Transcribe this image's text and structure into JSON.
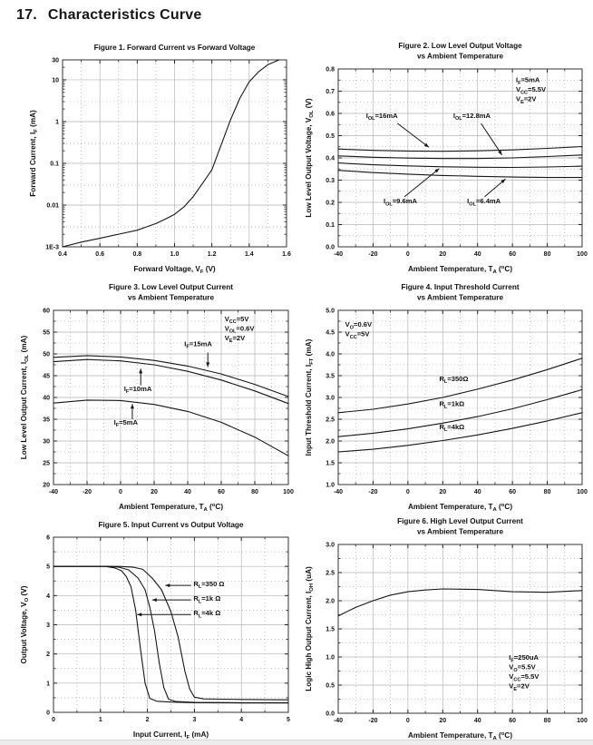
{
  "page": {
    "heading_number": "17.",
    "heading_title": "Characteristics Curve"
  },
  "colors": {
    "curve": "#161616",
    "grid_major": "#b5b5b5",
    "grid_minor": "#9a9a9a",
    "border": "#333333",
    "text": "#111111",
    "footer_bar": "#ededed"
  },
  "chart_data": [
    {
      "id": "fig1",
      "type": "line",
      "title_lines": [
        "Figure 1. Forward Current vs Forward Voltage"
      ],
      "xlabel": "Forward Voltage, V_{F} (V)",
      "ylabel": "Forward Current, I_{F} (mA)",
      "xlim": [
        0.4,
        1.6
      ],
      "ylim": [
        0.001,
        30
      ],
      "y_scale": "log",
      "grid": true,
      "legend": "none",
      "x_ticks": {
        "values": [
          0.4,
          0.6,
          0.8,
          1.0,
          1.2,
          1.4,
          1.6
        ],
        "labels": [
          "0.4",
          "0.6",
          "0.8",
          "1.0",
          "1.2",
          "1.4",
          "1.6"
        ]
      },
      "y_ticks": {
        "values": [
          0.001,
          0.01,
          0.1,
          1,
          10,
          30
        ],
        "labels": [
          "1E-3",
          "0.01",
          "0.1",
          "1",
          "10",
          "30"
        ]
      },
      "series": [
        {
          "name": "forward-current",
          "x": [
            0.4,
            0.5,
            0.6,
            0.7,
            0.8,
            0.85,
            0.9,
            0.95,
            1.0,
            1.05,
            1.1,
            1.15,
            1.2,
            1.25,
            1.3,
            1.35,
            1.4,
            1.45,
            1.5,
            1.56
          ],
          "y": [
            0.001,
            0.0013,
            0.0016,
            0.002,
            0.0025,
            0.003,
            0.0036,
            0.0046,
            0.006,
            0.009,
            0.016,
            0.033,
            0.07,
            0.28,
            1.1,
            3.6,
            9,
            15.5,
            23,
            30
          ]
        }
      ],
      "annotations": []
    },
    {
      "id": "fig2",
      "type": "line",
      "title_lines": [
        "Figure 2. Low Level Output Voltage",
        "vs Ambient Temperature"
      ],
      "xlabel": "Ambient Temperature, T_{A} (^{o}C)",
      "ylabel": "Low Level Output Voltage, V_{OL} (V)",
      "xlim": [
        -40,
        100
      ],
      "ylim": [
        0.0,
        0.8
      ],
      "y_scale": "linear",
      "grid": true,
      "legend": "none",
      "x_ticks": {
        "values": [
          -40,
          -20,
          0,
          20,
          40,
          60,
          80,
          100
        ],
        "labels": [
          "-40",
          "-20",
          "0",
          "20",
          "40",
          "60",
          "80",
          "100"
        ]
      },
      "y_ticks": {
        "values": [
          0.0,
          0.1,
          0.2,
          0.3,
          0.4,
          0.5,
          0.6,
          0.7,
          0.8
        ],
        "labels": [
          "0.0",
          "0.1",
          "0.2",
          "0.3",
          "0.4",
          "0.5",
          "0.6",
          "0.7",
          "0.8"
        ]
      },
      "series": [
        {
          "name": "IOL=16mA",
          "x": [
            -40,
            -20,
            0,
            20,
            40,
            60,
            80,
            100
          ],
          "y": [
            0.44,
            0.434,
            0.431,
            0.43,
            0.432,
            0.436,
            0.443,
            0.451
          ]
        },
        {
          "name": "IOL=12.8mA",
          "x": [
            -40,
            -20,
            0,
            20,
            40,
            60,
            80,
            100
          ],
          "y": [
            0.409,
            0.403,
            0.399,
            0.397,
            0.397,
            0.4,
            0.406,
            0.413
          ]
        },
        {
          "name": "IOL=9.6mA",
          "x": [
            -40,
            -20,
            0,
            20,
            40,
            60,
            80,
            100
          ],
          "y": [
            0.377,
            0.369,
            0.364,
            0.36,
            0.358,
            0.357,
            0.359,
            0.363
          ]
        },
        {
          "name": "IOL=6.4mA",
          "x": [
            -40,
            -20,
            0,
            20,
            40,
            60,
            80,
            100
          ],
          "y": [
            0.344,
            0.334,
            0.327,
            0.321,
            0.317,
            0.314,
            0.312,
            0.312
          ]
        }
      ],
      "annotations": [
        {
          "lines": [
            "I_{F}=5mA",
            "V_{CC}=5.5V",
            "V_{E}=2V"
          ],
          "x": 62,
          "y": 0.74,
          "anchor": "start"
        },
        {
          "lines": [
            "I_{OL}=16mA"
          ],
          "x": -24,
          "y": 0.58,
          "anchor": "start",
          "leader": {
            "x1": -6,
            "y1": 0.555,
            "x2": 12,
            "y2": 0.448,
            "arrow": true
          }
        },
        {
          "lines": [
            "I_{OL}=12.8mA"
          ],
          "x": 26,
          "y": 0.58,
          "anchor": "start",
          "leader": {
            "x1": 42,
            "y1": 0.555,
            "x2": 54,
            "y2": 0.413,
            "arrow": true
          }
        },
        {
          "lines": [
            "I_{OL}=9.6mA"
          ],
          "x": -14,
          "y": 0.195,
          "anchor": "start",
          "leader": {
            "x1": -2,
            "y1": 0.225,
            "x2": 18,
            "y2": 0.352,
            "arrow": true
          }
        },
        {
          "lines": [
            "I_{OL}=6.4mA"
          ],
          "x": 34,
          "y": 0.195,
          "anchor": "start",
          "leader": {
            "x1": 44,
            "y1": 0.225,
            "x2": 56,
            "y2": 0.305,
            "arrow": true
          }
        }
      ]
    },
    {
      "id": "fig3",
      "type": "line",
      "title_lines": [
        "Figure 3. Low Level Output Current",
        "vs Ambient Temperature"
      ],
      "xlabel": "Ambient Temperature, T_{A} (^{o}C)",
      "ylabel": "Low Level Output Current, I_{OL} (mA)",
      "xlim": [
        -40,
        100
      ],
      "ylim": [
        20,
        60
      ],
      "y_scale": "linear",
      "grid": true,
      "legend": "none",
      "x_ticks": {
        "values": [
          -40,
          -20,
          0,
          20,
          40,
          60,
          80,
          100
        ],
        "labels": [
          "-40",
          "-20",
          "0",
          "20",
          "40",
          "60",
          "80",
          "100"
        ]
      },
      "y_ticks": {
        "values": [
          20,
          25,
          30,
          35,
          40,
          45,
          50,
          55,
          60
        ],
        "labels": [
          "20",
          "25",
          "30",
          "35",
          "40",
          "45",
          "50",
          "55",
          "60"
        ]
      },
      "series": [
        {
          "name": "IF=15mA",
          "x": [
            -40,
            -20,
            0,
            20,
            40,
            60,
            80,
            100
          ],
          "y": [
            49.2,
            49.6,
            49.3,
            48.5,
            47.2,
            45.4,
            43.0,
            40.2
          ]
        },
        {
          "name": "IF=10mA",
          "x": [
            -40,
            -20,
            0,
            20,
            40,
            60,
            80,
            100
          ],
          "y": [
            48.2,
            48.7,
            48.4,
            47.5,
            46.0,
            44.0,
            41.5,
            38.6
          ]
        },
        {
          "name": "IF=5mA",
          "x": [
            -40,
            -20,
            0,
            20,
            40,
            60,
            80,
            100
          ],
          "y": [
            38.7,
            39.4,
            39.3,
            38.4,
            36.8,
            34.3,
            30.9,
            26.6
          ]
        }
      ],
      "annotations": [
        {
          "lines": [
            "V_{CC}=5V",
            "V_{OL}=0.6V",
            "V_{E}=2V"
          ],
          "x": 62,
          "y": 57.5,
          "anchor": "start"
        },
        {
          "lines": [
            "I_{F}=15mA"
          ],
          "x": 38,
          "y": 51.8,
          "anchor": "start",
          "leader": {
            "x1": 52,
            "y1": 50.3,
            "x2": 52,
            "y2": 47.0,
            "arrow": true
          }
        },
        {
          "lines": [
            "I_{F}=10mA"
          ],
          "x": 2,
          "y": 41.5,
          "anchor": "start",
          "leader": {
            "x1": 12,
            "y1": 42.8,
            "x2": 12,
            "y2": 46.6,
            "arrow": true
          }
        },
        {
          "lines": [
            "I_{F}=5mA"
          ],
          "x": -4,
          "y": 33.8,
          "anchor": "start",
          "leader": {
            "x1": 7,
            "y1": 35.0,
            "x2": 7,
            "y2": 38.5,
            "arrow": true
          }
        }
      ]
    },
    {
      "id": "fig4",
      "type": "line",
      "title_lines": [
        "Figure 4. Input Threshold Current",
        "vs Ambient Temperature"
      ],
      "xlabel": "Ambient Temperature, T_{A} (^{o}C)",
      "ylabel": "Input Threshold Current, I_{FT} (mA)",
      "xlim": [
        -40,
        100
      ],
      "ylim": [
        1.0,
        5.0
      ],
      "y_scale": "linear",
      "grid": true,
      "legend": "none",
      "x_ticks": {
        "values": [
          -40,
          -20,
          0,
          20,
          40,
          60,
          80,
          100
        ],
        "labels": [
          "-40",
          "-20",
          "0",
          "20",
          "40",
          "60",
          "80",
          "100"
        ]
      },
      "y_ticks": {
        "values": [
          1.0,
          1.5,
          2.0,
          2.5,
          3.0,
          3.5,
          4.0,
          4.5,
          5.0
        ],
        "labels": [
          "1.0",
          "1.5",
          "2.0",
          "2.5",
          "3.0",
          "3.5",
          "4.0",
          "4.5",
          "5.0"
        ]
      },
      "series": [
        {
          "name": "RL=350ohm",
          "x": [
            -40,
            -20,
            0,
            20,
            40,
            60,
            80,
            100
          ],
          "y": [
            2.65,
            2.73,
            2.85,
            3.0,
            3.19,
            3.4,
            3.64,
            3.9
          ]
        },
        {
          "name": "RL=1kohm",
          "x": [
            -40,
            -20,
            0,
            20,
            40,
            60,
            80,
            100
          ],
          "y": [
            2.1,
            2.18,
            2.28,
            2.41,
            2.56,
            2.74,
            2.95,
            3.18
          ]
        },
        {
          "name": "RL=4kohm",
          "x": [
            -40,
            -20,
            0,
            20,
            40,
            60,
            80,
            100
          ],
          "y": [
            1.75,
            1.81,
            1.9,
            2.01,
            2.14,
            2.29,
            2.46,
            2.65
          ]
        }
      ],
      "annotations": [
        {
          "lines": [
            "V_{O}=0.6V",
            "V_{CC}=5V"
          ],
          "x": -36,
          "y": 4.62,
          "anchor": "start"
        },
        {
          "lines": [
            "R_{L}=350Ω"
          ],
          "x": 18,
          "y": 3.38,
          "anchor": "start"
        },
        {
          "lines": [
            "R_{L}=1kΩ"
          ],
          "x": 18,
          "y": 2.8,
          "anchor": "start"
        },
        {
          "lines": [
            "R_{L}=4kΩ"
          ],
          "x": 18,
          "y": 2.27,
          "anchor": "start"
        }
      ]
    },
    {
      "id": "fig5",
      "type": "line",
      "title_lines": [
        "Figure 5. Input Current vs Output Voltage"
      ],
      "xlabel": "Input Current, I_{F} (mA)",
      "ylabel": "Output Voltage, V_{O} (V)",
      "xlim": [
        0,
        5
      ],
      "ylim": [
        0,
        6
      ],
      "y_scale": "linear",
      "grid": true,
      "legend": "none",
      "x_ticks": {
        "values": [
          0,
          1,
          2,
          3,
          4,
          5
        ],
        "labels": [
          "0",
          "1",
          "2",
          "3",
          "4",
          "5"
        ]
      },
      "y_ticks": {
        "values": [
          0,
          1,
          2,
          3,
          4,
          5,
          6
        ],
        "labels": [
          "0",
          "1",
          "2",
          "3",
          "4",
          "5",
          "6"
        ]
      },
      "series": [
        {
          "name": "RL=4kohm",
          "x": [
            0,
            0.8,
            1.1,
            1.3,
            1.45,
            1.55,
            1.65,
            1.75,
            1.85,
            1.95,
            2.05,
            2.2,
            2.5,
            3.0,
            4.0,
            5.0
          ],
          "y": [
            5,
            5,
            5,
            4.95,
            4.85,
            4.65,
            4.3,
            3.5,
            2.2,
            1.0,
            0.48,
            0.38,
            0.35,
            0.33,
            0.32,
            0.32
          ]
        },
        {
          "name": "RL=1kohm",
          "x": [
            0,
            0.9,
            1.2,
            1.4,
            1.6,
            1.8,
            1.95,
            2.05,
            2.15,
            2.25,
            2.35,
            2.45,
            2.6,
            3.0,
            4.0,
            5.0
          ],
          "y": [
            5,
            5,
            5,
            4.97,
            4.88,
            4.6,
            4.2,
            3.6,
            2.8,
            1.7,
            0.85,
            0.45,
            0.37,
            0.34,
            0.33,
            0.33
          ]
        },
        {
          "name": "RL=350ohm",
          "x": [
            0,
            1.0,
            1.4,
            1.7,
            1.9,
            2.1,
            2.3,
            2.5,
            2.65,
            2.8,
            2.9,
            3.0,
            3.2,
            3.6,
            4.0,
            5.0
          ],
          "y": [
            5,
            5,
            5,
            4.97,
            4.9,
            4.6,
            4.2,
            3.45,
            2.6,
            1.4,
            0.8,
            0.52,
            0.46,
            0.45,
            0.44,
            0.43
          ]
        }
      ],
      "annotations": [
        {
          "lines": [
            "R_{L}=350 Ω"
          ],
          "x": 2.98,
          "y": 4.32,
          "anchor": "start",
          "leader": {
            "x1": 2.93,
            "y1": 4.35,
            "x2": 2.38,
            "y2": 4.35,
            "arrow": true
          }
        },
        {
          "lines": [
            "R_{L}=1k Ω"
          ],
          "x": 2.98,
          "y": 3.82,
          "anchor": "start",
          "leader": {
            "x1": 2.93,
            "y1": 3.85,
            "x2": 2.1,
            "y2": 3.85,
            "arrow": true
          }
        },
        {
          "lines": [
            "R_{L}=4k Ω"
          ],
          "x": 2.98,
          "y": 3.32,
          "anchor": "start",
          "leader": {
            "x1": 2.93,
            "y1": 3.35,
            "x2": 1.78,
            "y2": 3.35,
            "arrow": true
          }
        }
      ]
    },
    {
      "id": "fig6",
      "type": "line",
      "title_lines": [
        "Figure 6. High Level Output Current",
        "vs Ambient Temperature"
      ],
      "xlabel": "Ambient Temperature, T_{A} (^{o}C)",
      "ylabel": "Logic High Output Current, I_{OH} (uA)",
      "xlim": [
        -40,
        100
      ],
      "ylim": [
        0.0,
        3.0
      ],
      "y_scale": "linear",
      "grid": true,
      "legend": "none",
      "x_ticks": {
        "values": [
          -40,
          -20,
          0,
          20,
          40,
          60,
          80,
          100
        ],
        "labels": [
          "-40",
          "-20",
          "0",
          "20",
          "40",
          "60",
          "80",
          "100"
        ]
      },
      "y_ticks": {
        "values": [
          0.0,
          0.5,
          1.0,
          1.5,
          2.0,
          2.5,
          3.0
        ],
        "labels": [
          "0.0",
          "0.5",
          "1.0",
          "1.5",
          "2.0",
          "2.5",
          "3.0"
        ]
      },
      "series": [
        {
          "name": "IOH",
          "x": [
            -40,
            -30,
            -20,
            -10,
            0,
            10,
            20,
            40,
            60,
            80,
            100
          ],
          "y": [
            1.73,
            1.88,
            2.0,
            2.1,
            2.16,
            2.19,
            2.21,
            2.2,
            2.16,
            2.15,
            2.18
          ]
        }
      ],
      "annotations": [
        {
          "lines": [
            "I_{F}=250uA",
            "V_{O}=5.5V",
            "V_{CC}=5.5V",
            "V_{E}=2V"
          ],
          "x": 58,
          "y": 0.95,
          "anchor": "start"
        }
      ]
    }
  ]
}
